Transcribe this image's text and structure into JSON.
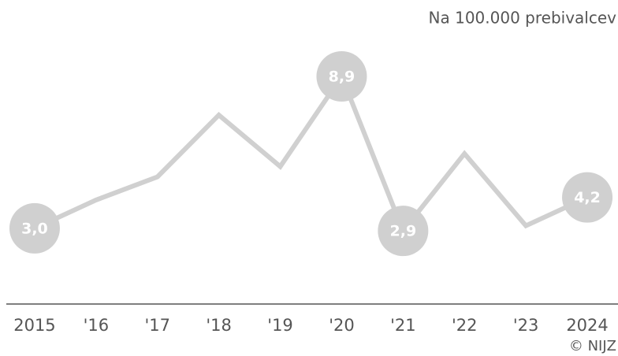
{
  "chart_data": {
    "type": "line",
    "subtitle": "Na 100.000 prebivalcev",
    "source": "© NIJZ",
    "categories": [
      "2015",
      "'16",
      "'17",
      "'18",
      "'19",
      "'20",
      "'21",
      "'22",
      "'23",
      "2024"
    ],
    "series": [
      {
        "name": null,
        "color": "#d0d0d0",
        "values": [
          3.0,
          4.1,
          5.0,
          7.4,
          5.4,
          8.9,
          2.9,
          5.9,
          3.1,
          4.2
        ],
        "value_labels": [
          "3,0",
          null,
          null,
          null,
          null,
          "8,9",
          "2,9",
          null,
          null,
          "4,2"
        ]
      }
    ],
    "ylim": [
      0,
      10
    ]
  }
}
